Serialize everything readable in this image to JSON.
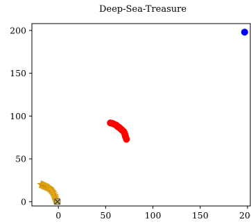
{
  "chart_data": {
    "type": "scatter",
    "title": "Deep-Sea-Treasure",
    "xlabel": "",
    "ylabel": "",
    "xlim": [
      -28,
      203
    ],
    "ylim": [
      -5,
      208
    ],
    "xticks": [
      0,
      50,
      100,
      150,
      200
    ],
    "yticks": [
      0,
      50,
      100,
      150,
      200
    ],
    "grid": false,
    "series": [
      {
        "color": "#ff0000",
        "marker": "circle",
        "points": [
          [
            55,
            92
          ],
          [
            57,
            91.5
          ],
          [
            59,
            90.5
          ],
          [
            61,
            89.5
          ],
          [
            62,
            88.5
          ],
          [
            63,
            87.5
          ],
          [
            64,
            87
          ],
          [
            65,
            86
          ],
          [
            66,
            85
          ],
          [
            67,
            84
          ],
          [
            68,
            83
          ],
          [
            69,
            82
          ],
          [
            70,
            80
          ],
          [
            70.5,
            78
          ],
          [
            71,
            76
          ],
          [
            72,
            73
          ]
        ]
      },
      {
        "color": "#0000ff",
        "marker": "circle",
        "points": [
          [
            197,
            198
          ]
        ]
      },
      {
        "color": "#e6ac1a",
        "marker": "star",
        "points": [
          [
            -18,
            20
          ],
          [
            -17,
            19.5
          ],
          [
            -16,
            19
          ],
          [
            -15,
            18.5
          ],
          [
            -14,
            18
          ],
          [
            -13,
            17.5
          ],
          [
            -12,
            17
          ],
          [
            -11,
            16.5
          ],
          [
            -10,
            16
          ],
          [
            -9,
            15
          ],
          [
            -8,
            14
          ],
          [
            -7,
            12.5
          ],
          [
            -6,
            11
          ],
          [
            -5,
            9
          ],
          [
            -4,
            7
          ],
          [
            -3.5,
            5
          ],
          [
            -3,
            3
          ],
          [
            -2.5,
            1.5
          ],
          [
            -2,
            0.5
          ]
        ]
      },
      {
        "color": "#666666",
        "marker": "x",
        "points": [
          [
            -1,
            0
          ]
        ]
      }
    ]
  }
}
